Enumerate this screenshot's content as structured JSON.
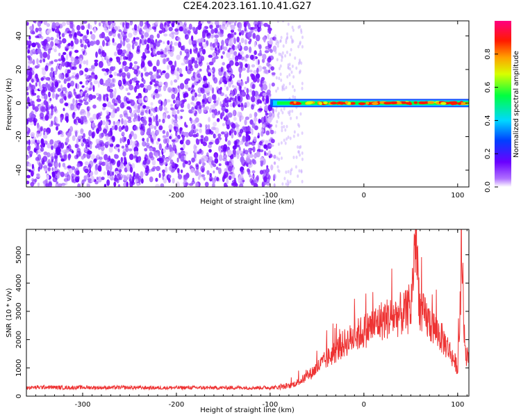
{
  "title": "C2E4.2023.161.10.41.G27",
  "colors": {
    "snr_line": "#ee3333",
    "background": "#ffffff",
    "axis": "#000000"
  },
  "chart_data": [
    {
      "type": "heatmap",
      "xlabel": "Height of straight line (km)",
      "ylabel": "Frequency (Hz)",
      "xlim": [
        -360,
        112
      ],
      "ylim": [
        -50,
        49
      ],
      "xticks": [
        -300,
        -200,
        -100,
        0,
        100
      ],
      "yticks": [
        -40,
        -20,
        0,
        20,
        40
      ],
      "colorbar": {
        "label": "Normalized spectral amplitude",
        "range": [
          0.0,
          1.0
        ],
        "ticks": [
          0.0,
          0.2,
          0.4,
          0.6,
          0.8
        ],
        "tick_labels": [
          "0.0",
          "0.2",
          "0.4",
          "0.6",
          "0.8"
        ],
        "colormap": "rainbow (white-violet-blue-cyan-green-yellow-orange-red-magenta)"
      },
      "description_values": {
        "noise_region_x": [
          -360,
          -95
        ],
        "signal_line_frequency_hz": 0,
        "signal_start_x": -100,
        "signal_end_x": 112
      }
    },
    {
      "type": "line",
      "xlabel": "Height of straight line (km)",
      "ylabel": "SNR (10 * v/v)",
      "xlim": [
        -360,
        112
      ],
      "ylim": [
        0,
        5900
      ],
      "xticks": [
        -300,
        -200,
        -100,
        0,
        100
      ],
      "yticks": [
        0,
        1000,
        2000,
        3000,
        4000,
        5000
      ],
      "series": [
        {
          "x": [
            -360,
            -340,
            -320,
            -300,
            -280,
            -260,
            -240,
            -220,
            -200,
            -180,
            -160,
            -140,
            -120,
            -100,
            -90,
            -80,
            -70,
            -60,
            -50,
            -40,
            -30,
            -20,
            -10,
            0,
            10,
            20,
            30,
            40,
            50,
            55,
            60,
            70,
            80,
            90,
            100,
            105,
            108,
            112
          ],
          "values": [
            300,
            320,
            300,
            310,
            300,
            305,
            300,
            295,
            300,
            300,
            295,
            300,
            300,
            300,
            320,
            350,
            500,
            700,
            1000,
            1300,
            1600,
            1900,
            2100,
            2300,
            2500,
            2700,
            2800,
            2900,
            3000,
            5800,
            3000,
            2600,
            2200,
            1700,
            1000,
            4800,
            1400,
            1600
          ]
        }
      ]
    }
  ]
}
